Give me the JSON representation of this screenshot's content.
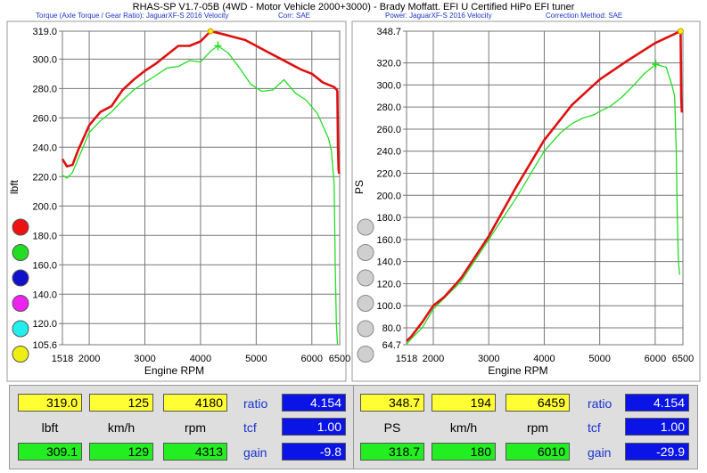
{
  "title": "RHAS-SP V1.7-05B   (4WD - Motor Vehicle 2000+3000) - Brady Moffatt. EFI U Certified HiPo EFI tuner",
  "left_subtitle": {
    "left": "Torque (Axle Torque / Gear Ratio): JaguarXF-S 2016 Velocity",
    "right": "Corr: SAE"
  },
  "right_subtitle": {
    "left": "Power: JaguarXF-S 2016 Velocity",
    "right": "Correction Method: SAE"
  },
  "chart_data": [
    {
      "type": "line",
      "xlabel": "Engine RPM",
      "ylabel": "lbft",
      "xlim": [
        1518,
        6500
      ],
      "ylim": [
        105.6,
        319.0
      ],
      "xticks": [
        "1518",
        "2000",
        "3000",
        "4000",
        "5000",
        "6000",
        "6500"
      ],
      "xtick_values": [
        1518,
        2000,
        3000,
        4000,
        5000,
        6000,
        6500
      ],
      "yticks": [
        "319.0",
        "300.0",
        "280.0",
        "260.0",
        "240.0",
        "220.0",
        "200.0",
        "180.0",
        "160.0",
        "140.0",
        "120.0",
        "105.6"
      ],
      "ytick_values": [
        319.0,
        300.0,
        280.0,
        260.0,
        240.0,
        220.0,
        200.0,
        180.0,
        160.0,
        140.0,
        120.0,
        105.6
      ],
      "grid": true,
      "series": [
        {
          "color": "#dd1111",
          "x": [
            1518,
            1600,
            1700,
            1800,
            2000,
            2200,
            2400,
            2600,
            2800,
            3000,
            3200,
            3400,
            3600,
            3800,
            4000,
            4180,
            4400,
            4600,
            4800,
            5000,
            5200,
            5400,
            5600,
            5800,
            6000,
            6200,
            6400,
            6450,
            6459,
            6470,
            6480,
            6490
          ],
          "y": [
            232,
            227,
            228,
            238,
            255,
            264,
            268,
            279,
            286,
            292,
            297,
            303,
            309,
            309,
            312,
            319,
            317,
            315,
            313,
            309,
            305,
            301,
            297,
            293,
            290,
            284,
            281,
            279,
            278,
            240,
            225,
            222
          ]
        },
        {
          "color": "#22dd22",
          "x": [
            1518,
            1600,
            1700,
            1800,
            2000,
            2200,
            2400,
            2600,
            2800,
            3000,
            3200,
            3400,
            3600,
            3800,
            4000,
            4200,
            4313,
            4500,
            4700,
            4900,
            5100,
            5300,
            5500,
            5700,
            5900,
            6100,
            6300,
            6350,
            6400,
            6420,
            6440,
            6460
          ],
          "y": [
            221,
            219,
            223,
            232,
            250,
            258,
            264,
            272,
            279,
            284,
            289,
            294,
            295,
            299,
            298,
            306,
            309,
            304,
            294,
            283,
            278,
            279,
            286,
            277,
            272,
            263,
            246,
            238,
            215,
            160,
            120,
            106
          ]
        }
      ]
    },
    {
      "type": "line",
      "xlabel": "Engine RPM",
      "ylabel": "PS",
      "xlim": [
        1518,
        6500
      ],
      "ylim": [
        64.7,
        348.7
      ],
      "xticks": [
        "1518",
        "2000",
        "3000",
        "4000",
        "5000",
        "6000",
        "6500"
      ],
      "xtick_values": [
        1518,
        2000,
        3000,
        4000,
        5000,
        6000,
        6500
      ],
      "yticks": [
        "348.7",
        "320.0",
        "300.0",
        "280.0",
        "260.0",
        "240.0",
        "220.0",
        "200.0",
        "180.0",
        "160.0",
        "140.0",
        "120.0",
        "100.0",
        "80.0",
        "64.7"
      ],
      "ytick_values": [
        348.7,
        320.0,
        300.0,
        280.0,
        260.0,
        240.0,
        220.0,
        200.0,
        180.0,
        160.0,
        140.0,
        120.0,
        100.0,
        80.0,
        64.7
      ],
      "grid": true,
      "series": [
        {
          "color": "#dd1111",
          "x": [
            1518,
            1600,
            1800,
            2000,
            2200,
            2500,
            3000,
            3500,
            4000,
            4500,
            5000,
            5500,
            6000,
            6300,
            6459,
            6470,
            6480
          ],
          "y": [
            68,
            72,
            85,
            100,
            108,
            125,
            163,
            208,
            250,
            282,
            305,
            322,
            338,
            345,
            348.7,
            289,
            275
          ]
        },
        {
          "color": "#22dd22",
          "x": [
            1518,
            1600,
            1800,
            2000,
            2200,
            2500,
            3000,
            3500,
            4000,
            4300,
            4500,
            4700,
            4900,
            5000,
            5200,
            5400,
            5600,
            5800,
            6010,
            6200,
            6300,
            6350,
            6380,
            6400,
            6420,
            6440
          ],
          "y": [
            65,
            70,
            80,
            97,
            107,
            122,
            160,
            198,
            240,
            257,
            265,
            270,
            273,
            276,
            281,
            289,
            299,
            310,
            318.7,
            316,
            300,
            290,
            240,
            175,
            140,
            128
          ]
        }
      ]
    }
  ],
  "legend_dots": [
    "#ee1111",
    "#22dd22",
    "#1111cc",
    "#ee22ee",
    "#22eeee",
    "#eeee11"
  ],
  "left_readout": {
    "row1": [
      "319.0",
      "125",
      "4180"
    ],
    "row2": [
      "lbft",
      "km/h",
      "rpm"
    ],
    "row3": [
      "309.1",
      "129",
      "4313"
    ],
    "labels": [
      "ratio",
      "tcf",
      "gain"
    ],
    "values": [
      "4.154",
      "1.00",
      "-9.8"
    ]
  },
  "right_readout": {
    "row1": [
      "348.7",
      "194",
      "6459"
    ],
    "row2": [
      "PS",
      "km/h",
      "rpm"
    ],
    "row3": [
      "318.7",
      "180",
      "6010"
    ],
    "labels": [
      "ratio",
      "tcf",
      "gain"
    ],
    "values": [
      "4.154",
      "1.00",
      "-29.9"
    ]
  }
}
